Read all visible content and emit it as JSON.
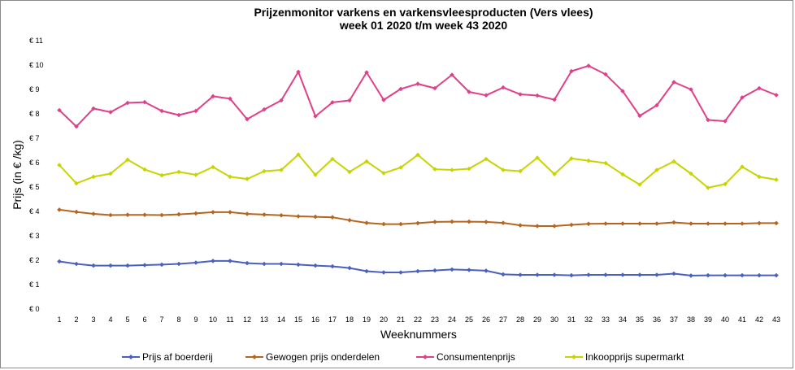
{
  "chart_data": {
    "type": "line",
    "title_line1": "Prijzenmonitor varkens en varkensvleesproducten (Vers vlees)",
    "title_line2": "week 01 2020 t/m week 43 2020",
    "xlabel": "Weeknummers",
    "ylabel": "Prijs (in € /kg)",
    "ylim": [
      0,
      11
    ],
    "y_ticks": [
      "€ 0",
      "€ 1",
      "€ 2",
      "€ 3",
      "€ 4",
      "€ 5",
      "€ 6",
      "€ 7",
      "€ 8",
      "€ 9",
      "€ 10",
      "€ 11"
    ],
    "grid": false,
    "legend_position": "bottom",
    "categories": [
      "1",
      "2",
      "3",
      "4",
      "5",
      "6",
      "7",
      "8",
      "9",
      "10",
      "11",
      "12",
      "13",
      "14",
      "15",
      "16",
      "17",
      "18",
      "19",
      "20",
      "21",
      "22",
      "23",
      "24",
      "25",
      "26",
      "27",
      "28",
      "29",
      "30",
      "31",
      "32",
      "33",
      "34",
      "35",
      "36",
      "37",
      "38",
      "39",
      "40",
      "41",
      "42",
      "43"
    ],
    "series": [
      {
        "name": "Prijs af boerderij",
        "color": "#4a5fbf",
        "values": [
          1.95,
          1.85,
          1.78,
          1.78,
          1.78,
          1.8,
          1.82,
          1.85,
          1.9,
          1.97,
          1.97,
          1.88,
          1.85,
          1.85,
          1.82,
          1.78,
          1.75,
          1.68,
          1.55,
          1.5,
          1.5,
          1.55,
          1.58,
          1.62,
          1.6,
          1.57,
          1.42,
          1.4,
          1.4,
          1.4,
          1.38,
          1.4,
          1.4,
          1.4,
          1.4,
          1.4,
          1.45,
          1.37,
          1.38,
          1.38,
          1.38,
          1.38,
          1.38
        ]
      },
      {
        "name": "Gewogen prijs onderdelen",
        "color": "#b5651d",
        "values": [
          4.07,
          3.98,
          3.9,
          3.85,
          3.86,
          3.86,
          3.85,
          3.88,
          3.92,
          3.97,
          3.97,
          3.9,
          3.87,
          3.84,
          3.8,
          3.78,
          3.76,
          3.64,
          3.53,
          3.48,
          3.48,
          3.52,
          3.57,
          3.58,
          3.58,
          3.57,
          3.53,
          3.43,
          3.4,
          3.4,
          3.45,
          3.49,
          3.5,
          3.5,
          3.5,
          3.5,
          3.55,
          3.5,
          3.5,
          3.5,
          3.5,
          3.52,
          3.52
        ]
      },
      {
        "name": "Consumentenprijs",
        "color": "#e0408a",
        "values": [
          8.15,
          7.48,
          8.22,
          8.07,
          8.45,
          8.48,
          8.12,
          7.95,
          8.12,
          8.72,
          8.62,
          7.78,
          8.18,
          8.55,
          9.72,
          7.9,
          8.47,
          8.55,
          9.7,
          8.57,
          9.02,
          9.23,
          9.05,
          9.6,
          8.9,
          8.76,
          9.08,
          8.8,
          8.75,
          8.58,
          9.75,
          9.97,
          9.62,
          8.93,
          7.92,
          8.35,
          9.3,
          9.0,
          7.75,
          7.7,
          8.67,
          9.05,
          8.77
        ]
      },
      {
        "name": "Inkoopprijs supermarkt",
        "color": "#c8d400",
        "values": [
          5.9,
          5.15,
          5.42,
          5.55,
          6.12,
          5.72,
          5.48,
          5.62,
          5.5,
          5.82,
          5.42,
          5.33,
          5.65,
          5.7,
          6.33,
          5.5,
          6.15,
          5.62,
          6.05,
          5.57,
          5.8,
          6.32,
          5.73,
          5.7,
          5.75,
          6.15,
          5.7,
          5.65,
          6.2,
          5.53,
          6.17,
          6.08,
          5.98,
          5.52,
          5.1,
          5.7,
          6.05,
          5.55,
          4.97,
          5.12,
          5.83,
          5.42,
          5.3
        ]
      }
    ]
  }
}
